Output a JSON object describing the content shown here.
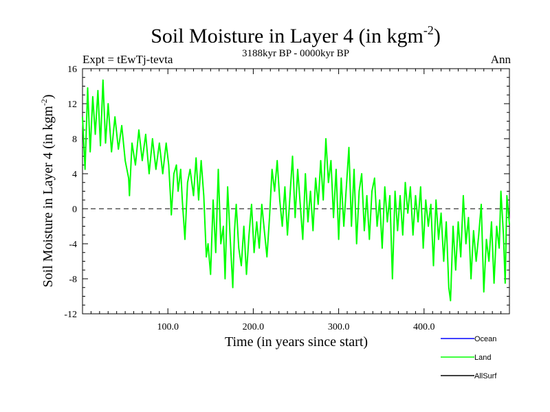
{
  "chart_data": {
    "type": "line",
    "title": "Soil Moisture in Layer 4 (in kgm",
    "title_sup": "-2",
    "title_close": ")",
    "subtitle": "3188kyr BP - 0000kyr BP",
    "experiment": "Expt = tEwTj-tevta",
    "season": "Ann",
    "xlabel": "Time (in years since start)",
    "ylabel": "Soil Moisture in Layer 4 (in kgm",
    "ylabel_sup": "-2",
    "ylabel_close": ")",
    "xlim": [
      0,
      500
    ],
    "ylim": [
      -12,
      16
    ],
    "xticks": [
      100,
      200,
      300,
      400
    ],
    "xtick_labels": [
      "100.0",
      "200.0",
      "300.0",
      "400.0"
    ],
    "yticks": [
      16,
      12,
      8,
      4,
      0,
      -4,
      -8,
      -12
    ],
    "ytick_labels": [
      "16",
      "12",
      "8",
      "4",
      "0",
      "-4",
      "-8",
      "-12"
    ],
    "zero_line": 0,
    "legend": [
      {
        "name": "Ocean",
        "color": "#0000ff"
      },
      {
        "name": "Land",
        "color": "#00ff00"
      },
      {
        "name": "AllSurf",
        "color": "#000000"
      }
    ],
    "series": [
      {
        "name": "Land",
        "color": "#00ff00",
        "points": [
          [
            0,
            10.5
          ],
          [
            3,
            4.5
          ],
          [
            6,
            13.8
          ],
          [
            9,
            6.5
          ],
          [
            12,
            12.8
          ],
          [
            15,
            8.5
          ],
          [
            18,
            13.5
          ],
          [
            21,
            7.2
          ],
          [
            24,
            14.7
          ],
          [
            27,
            7.5
          ],
          [
            30,
            12.0
          ],
          [
            34,
            6.5
          ],
          [
            38,
            10.5
          ],
          [
            42,
            6.8
          ],
          [
            46,
            9.5
          ],
          [
            50,
            5.5
          ],
          [
            54,
            3.5
          ],
          [
            55,
            1.5
          ],
          [
            58,
            7.5
          ],
          [
            62,
            5.0
          ],
          [
            66,
            9.0
          ],
          [
            70,
            5.5
          ],
          [
            74,
            8.5
          ],
          [
            78,
            4.0
          ],
          [
            82,
            8.0
          ],
          [
            86,
            4.5
          ],
          [
            90,
            7.5
          ],
          [
            94,
            4.0
          ],
          [
            98,
            7.5
          ],
          [
            101,
            5.0
          ],
          [
            103,
            1.5
          ],
          [
            104,
            -0.7
          ],
          [
            107,
            4.0
          ],
          [
            110,
            5.0
          ],
          [
            112,
            2.0
          ],
          [
            115,
            4.5
          ],
          [
            117,
            0.8
          ],
          [
            120,
            -3.5
          ],
          [
            123,
            3.0
          ],
          [
            126,
            4.5
          ],
          [
            130,
            1.5
          ],
          [
            133,
            5.8
          ],
          [
            136,
            1.0
          ],
          [
            139,
            5.5
          ],
          [
            142,
            1.5
          ],
          [
            145,
            -5.5
          ],
          [
            147,
            -4.0
          ],
          [
            150,
            -7.5
          ],
          [
            153,
            1.0
          ],
          [
            156,
            -5.0
          ],
          [
            159,
            4.5
          ],
          [
            162,
            -4.0
          ],
          [
            165,
            -2.0
          ],
          [
            167,
            -8.0
          ],
          [
            170,
            2.5
          ],
          [
            173,
            -3.5
          ],
          [
            176,
            -9.0
          ],
          [
            178,
            -2.5
          ],
          [
            180,
            0.5
          ],
          [
            183,
            -4.5
          ],
          [
            186,
            -6.5
          ],
          [
            189,
            -2.0
          ],
          [
            192,
            -7.5
          ],
          [
            195,
            -3.0
          ],
          [
            198,
            0.5
          ],
          [
            201,
            -5.0
          ],
          [
            204,
            -1.5
          ],
          [
            207,
            -4.5
          ],
          [
            210,
            0.5
          ],
          [
            213,
            -2.5
          ],
          [
            216,
            -5.5
          ],
          [
            219,
            -1.0
          ],
          [
            222,
            4.5
          ],
          [
            225,
            2.0
          ],
          [
            228,
            5.5
          ],
          [
            231,
            1.0
          ],
          [
            234,
            -2.0
          ],
          [
            237,
            2.5
          ],
          [
            240,
            -3.0
          ],
          [
            243,
            1.5
          ],
          [
            246,
            6.0
          ],
          [
            249,
            -1.0
          ],
          [
            252,
            4.5
          ],
          [
            255,
            0.5
          ],
          [
            258,
            -3.5
          ],
          [
            261,
            4.0
          ],
          [
            264,
            -1.5
          ],
          [
            267,
            2.0
          ],
          [
            270,
            -2.5
          ],
          [
            273,
            3.5
          ],
          [
            276,
            0.5
          ],
          [
            279,
            5.5
          ],
          [
            282,
            1.0
          ],
          [
            285,
            8.0
          ],
          [
            288,
            3.0
          ],
          [
            291,
            5.5
          ],
          [
            294,
            -1.0
          ],
          [
            297,
            4.5
          ],
          [
            300,
            -3.5
          ],
          [
            303,
            3.5
          ],
          [
            306,
            -2.0
          ],
          [
            309,
            2.5
          ],
          [
            312,
            7.0
          ],
          [
            315,
            -2.0
          ],
          [
            318,
            4.5
          ],
          [
            321,
            -4.0
          ],
          [
            324,
            2.0
          ],
          [
            327,
            4.0
          ],
          [
            330,
            -2.5
          ],
          [
            333,
            1.5
          ],
          [
            336,
            -3.5
          ],
          [
            339,
            2.0
          ],
          [
            342,
            3.5
          ],
          [
            345,
            -2.0
          ],
          [
            348,
            1.0
          ],
          [
            351,
            -4.5
          ],
          [
            354,
            2.5
          ],
          [
            357,
            -1.5
          ],
          [
            360,
            1.5
          ],
          [
            363,
            -8.0
          ],
          [
            366,
            2.0
          ],
          [
            369,
            -2.5
          ],
          [
            372,
            1.5
          ],
          [
            375,
            -3.0
          ],
          [
            378,
            3.0
          ],
          [
            381,
            -0.5
          ],
          [
            384,
            2.5
          ],
          [
            387,
            -3.0
          ],
          [
            390,
            1.5
          ],
          [
            393,
            -1.5
          ],
          [
            396,
            2.5
          ],
          [
            399,
            -4.5
          ],
          [
            402,
            1.0
          ],
          [
            405,
            -2.0
          ],
          [
            408,
            0.5
          ],
          [
            411,
            -6.5
          ],
          [
            414,
            1.0
          ],
          [
            417,
            -3.5
          ],
          [
            420,
            -0.5
          ],
          [
            423,
            -6.0
          ],
          [
            426,
            -1.5
          ],
          [
            429,
            -9.0
          ],
          [
            431,
            -10.5
          ],
          [
            434,
            -2.0
          ],
          [
            437,
            -7.0
          ],
          [
            440,
            -1.5
          ],
          [
            443,
            -5.5
          ],
          [
            446,
            1.5
          ],
          [
            449,
            -4.0
          ],
          [
            452,
            -1.0
          ],
          [
            455,
            -8.0
          ],
          [
            458,
            -2.5
          ],
          [
            461,
            -6.0
          ],
          [
            464,
            -3.0
          ],
          [
            467,
            0.5
          ],
          [
            470,
            -9.5
          ],
          [
            473,
            -3.5
          ],
          [
            476,
            -6.0
          ],
          [
            479,
            -1.5
          ],
          [
            482,
            -8.5
          ],
          [
            485,
            -2.0
          ],
          [
            488,
            -4.5
          ],
          [
            490,
            2.0
          ],
          [
            493,
            -3.0
          ],
          [
            495,
            -8.5
          ],
          [
            497,
            1.5
          ],
          [
            500,
            -1.8
          ]
        ]
      }
    ]
  }
}
